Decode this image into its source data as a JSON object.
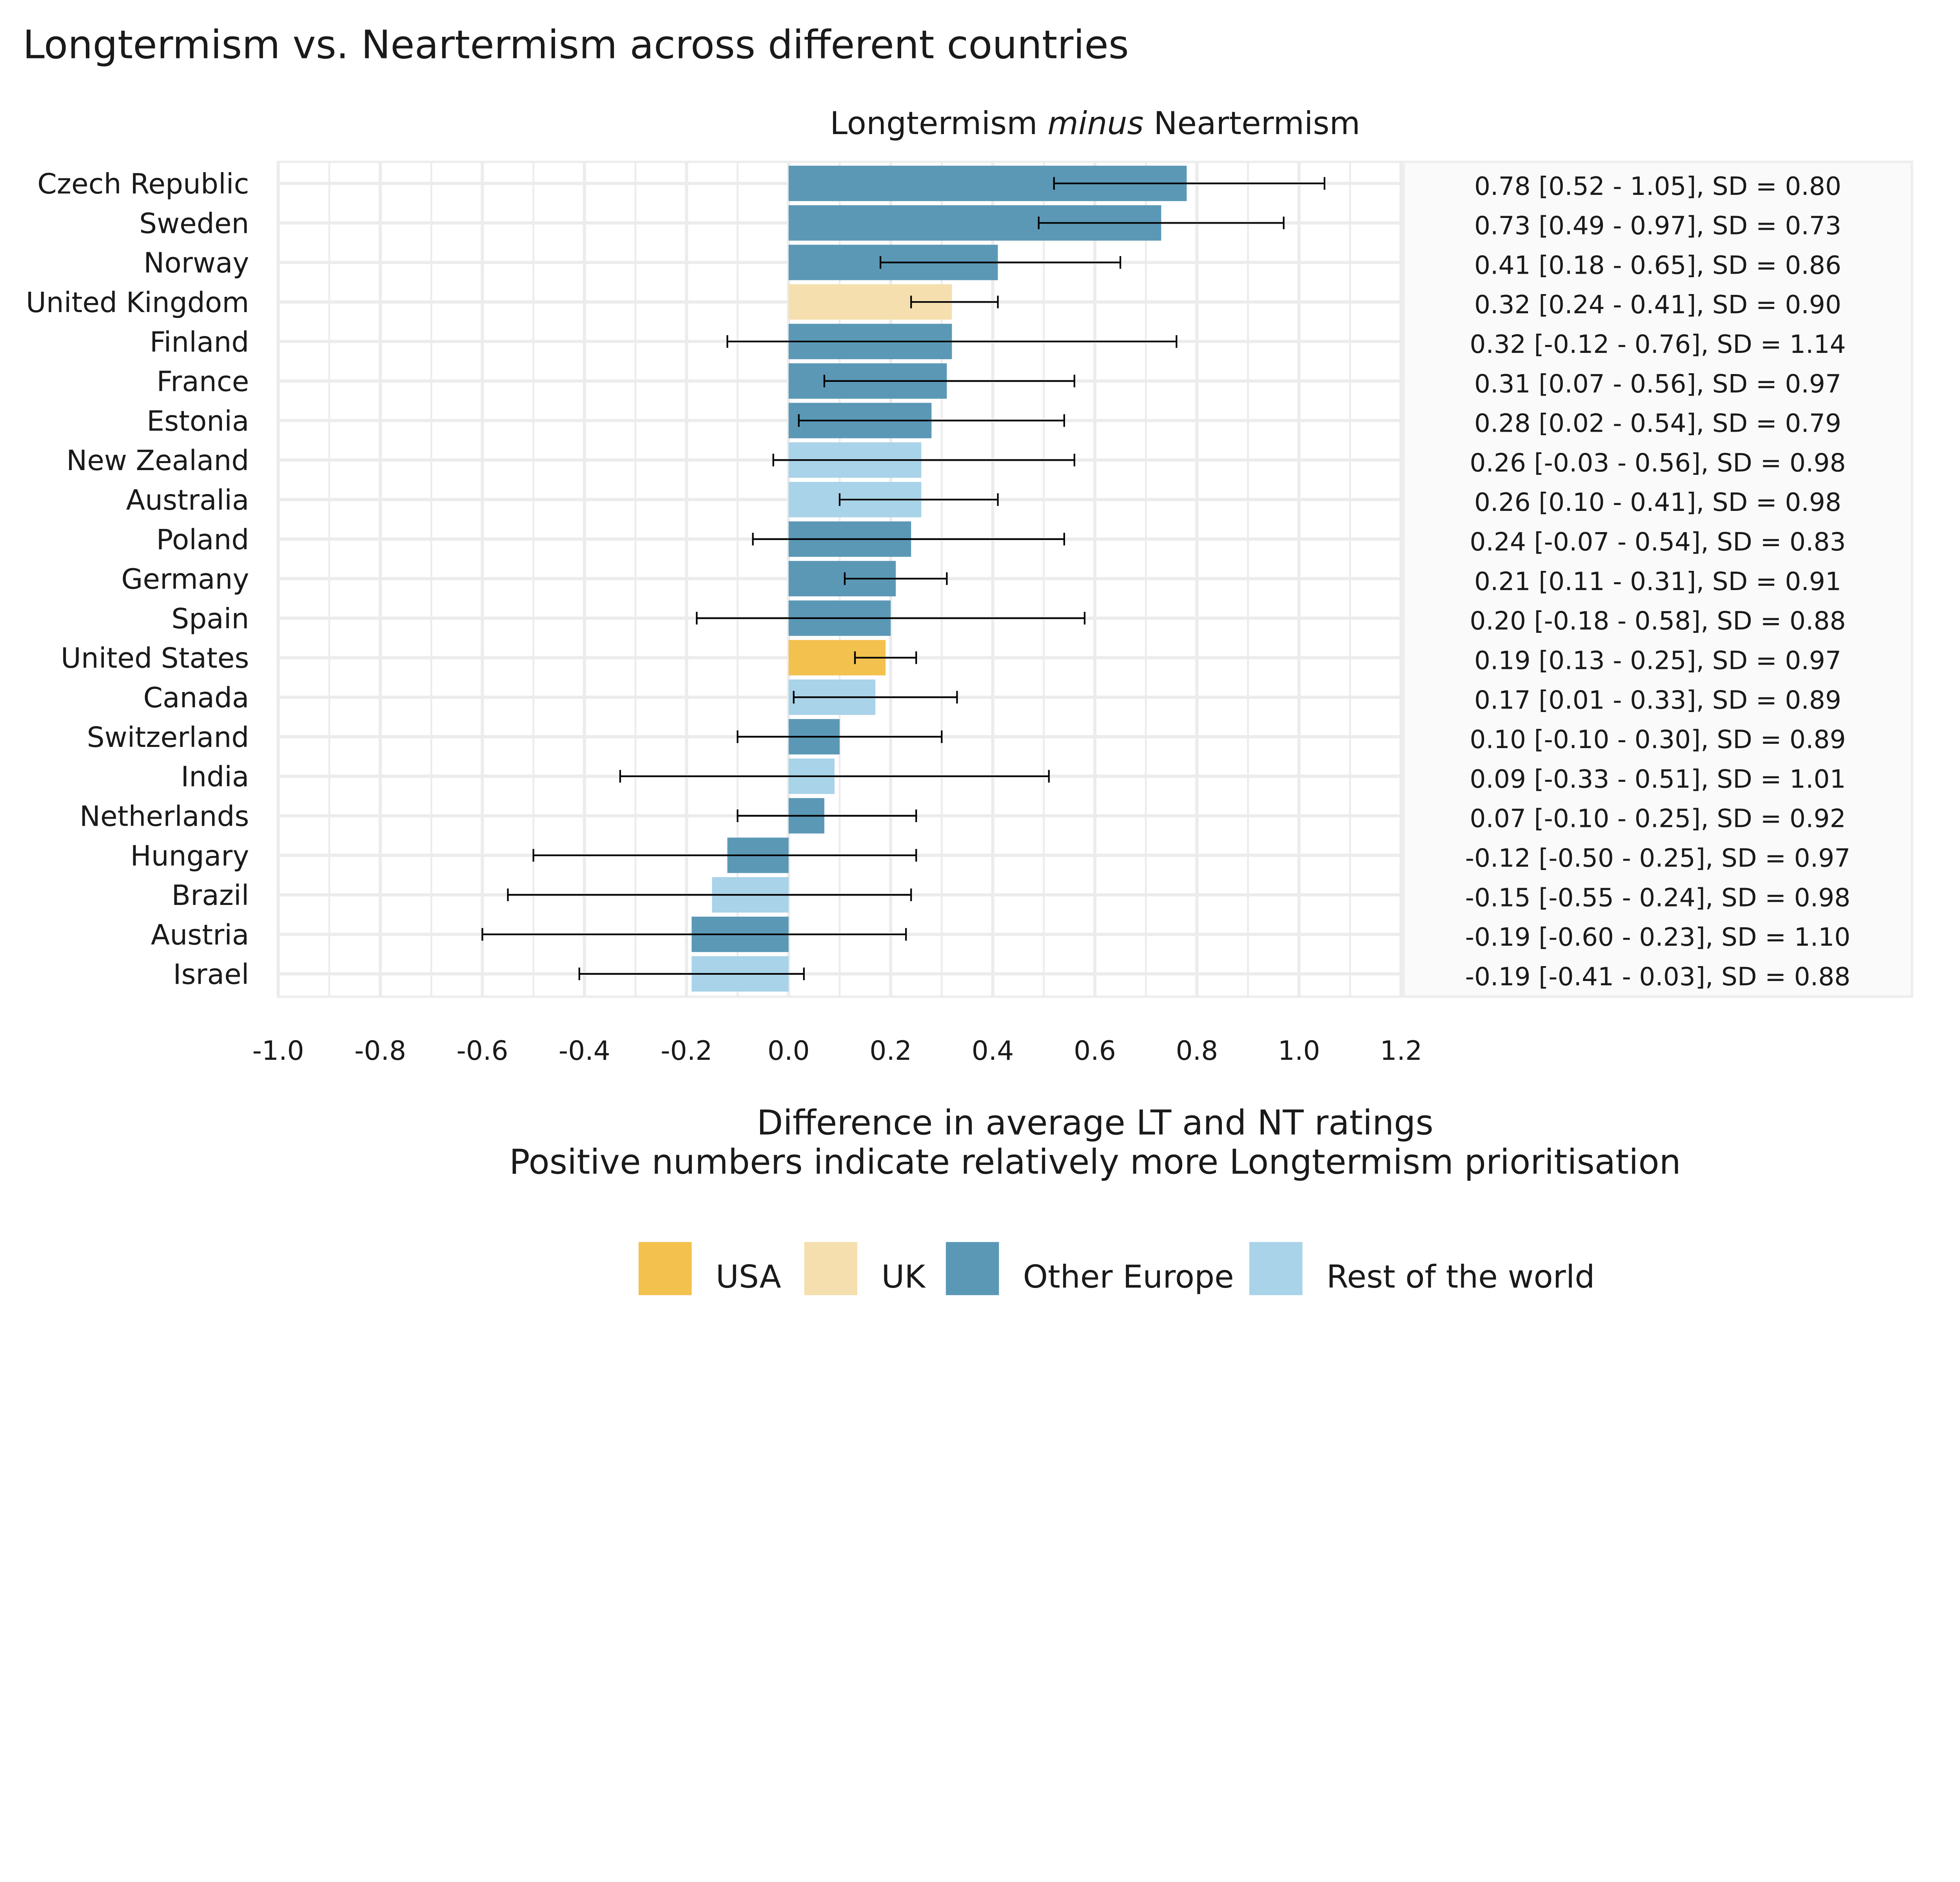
{
  "chart_data": {
    "type": "bar",
    "orientation": "horizontal",
    "title": "Longtermism vs. Neartermism across different countries",
    "facet_title": {
      "before": "Longtermism ",
      "italic": "minus",
      "after": " Neartermism"
    },
    "xlabel": "Difference in average LT and NT ratings",
    "xlabel_line2": "Positive numbers indicate relatively more Longtermism prioritisation",
    "xlim": [
      -1.0,
      1.2
    ],
    "xticks": [
      "-1.0",
      "-0.8",
      "-0.6",
      "-0.4",
      "-0.2",
      "0.0",
      "0.2",
      "0.4",
      "0.6",
      "0.8",
      "1.0",
      "1.2"
    ],
    "grid": true,
    "legend_position": "bottom",
    "groups": [
      {
        "name": "USA",
        "color": "#f2c14e"
      },
      {
        "name": "UK",
        "color": "#f5dfae"
      },
      {
        "name": "Other Europe",
        "color": "#5b98b6"
      },
      {
        "name": "Rest of the world",
        "color": "#a8d3e8"
      }
    ],
    "rows": [
      {
        "country": "Czech Republic",
        "group": "Other Europe",
        "mean": 0.78,
        "lo": 0.52,
        "hi": 1.05,
        "label": "0.78 [0.52 - 1.05], SD = 0.80"
      },
      {
        "country": "Sweden",
        "group": "Other Europe",
        "mean": 0.73,
        "lo": 0.49,
        "hi": 0.97,
        "label": "0.73 [0.49 - 0.97], SD = 0.73"
      },
      {
        "country": "Norway",
        "group": "Other Europe",
        "mean": 0.41,
        "lo": 0.18,
        "hi": 0.65,
        "label": "0.41 [0.18 - 0.65], SD = 0.86"
      },
      {
        "country": "United Kingdom",
        "group": "UK",
        "mean": 0.32,
        "lo": 0.24,
        "hi": 0.41,
        "label": "0.32 [0.24 - 0.41], SD = 0.90"
      },
      {
        "country": "Finland",
        "group": "Other Europe",
        "mean": 0.32,
        "lo": -0.12,
        "hi": 0.76,
        "label": "0.32 [-0.12 - 0.76], SD = 1.14"
      },
      {
        "country": "France",
        "group": "Other Europe",
        "mean": 0.31,
        "lo": 0.07,
        "hi": 0.56,
        "label": "0.31 [0.07 - 0.56], SD = 0.97"
      },
      {
        "country": "Estonia",
        "group": "Other Europe",
        "mean": 0.28,
        "lo": 0.02,
        "hi": 0.54,
        "label": "0.28 [0.02 - 0.54], SD = 0.79"
      },
      {
        "country": "New Zealand",
        "group": "Rest of the world",
        "mean": 0.26,
        "lo": -0.03,
        "hi": 0.56,
        "label": "0.26 [-0.03 - 0.56], SD = 0.98"
      },
      {
        "country": "Australia",
        "group": "Rest of the world",
        "mean": 0.26,
        "lo": 0.1,
        "hi": 0.41,
        "label": "0.26 [0.10 - 0.41], SD = 0.98"
      },
      {
        "country": "Poland",
        "group": "Other Europe",
        "mean": 0.24,
        "lo": -0.07,
        "hi": 0.54,
        "label": "0.24 [-0.07 - 0.54], SD = 0.83"
      },
      {
        "country": "Germany",
        "group": "Other Europe",
        "mean": 0.21,
        "lo": 0.11,
        "hi": 0.31,
        "label": "0.21 [0.11 - 0.31], SD = 0.91"
      },
      {
        "country": "Spain",
        "group": "Other Europe",
        "mean": 0.2,
        "lo": -0.18,
        "hi": 0.58,
        "label": "0.20 [-0.18 - 0.58], SD = 0.88"
      },
      {
        "country": "United States",
        "group": "USA",
        "mean": 0.19,
        "lo": 0.13,
        "hi": 0.25,
        "label": "0.19 [0.13 - 0.25], SD = 0.97"
      },
      {
        "country": "Canada",
        "group": "Rest of the world",
        "mean": 0.17,
        "lo": 0.01,
        "hi": 0.33,
        "label": "0.17 [0.01 - 0.33], SD = 0.89"
      },
      {
        "country": "Switzerland",
        "group": "Other Europe",
        "mean": 0.1,
        "lo": -0.1,
        "hi": 0.3,
        "label": "0.10 [-0.10 - 0.30], SD = 0.89"
      },
      {
        "country": "India",
        "group": "Rest of the world",
        "mean": 0.09,
        "lo": -0.33,
        "hi": 0.51,
        "label": "0.09 [-0.33 - 0.51], SD = 1.01"
      },
      {
        "country": "Netherlands",
        "group": "Other Europe",
        "mean": 0.07,
        "lo": -0.1,
        "hi": 0.25,
        "label": "0.07 [-0.10 - 0.25], SD = 0.92"
      },
      {
        "country": "Hungary",
        "group": "Other Europe",
        "mean": -0.12,
        "lo": -0.5,
        "hi": 0.25,
        "label": "-0.12 [-0.50 - 0.25], SD = 0.97"
      },
      {
        "country": "Brazil",
        "group": "Rest of the world",
        "mean": -0.15,
        "lo": -0.55,
        "hi": 0.24,
        "label": "-0.15 [-0.55 - 0.24], SD = 0.98"
      },
      {
        "country": "Austria",
        "group": "Other Europe",
        "mean": -0.19,
        "lo": -0.6,
        "hi": 0.23,
        "label": "-0.19 [-0.60 - 0.23], SD = 1.10"
      },
      {
        "country": "Israel",
        "group": "Rest of the world",
        "mean": -0.19,
        "lo": -0.41,
        "hi": 0.03,
        "label": "-0.19 [-0.41 - 0.03], SD = 0.88"
      }
    ]
  }
}
